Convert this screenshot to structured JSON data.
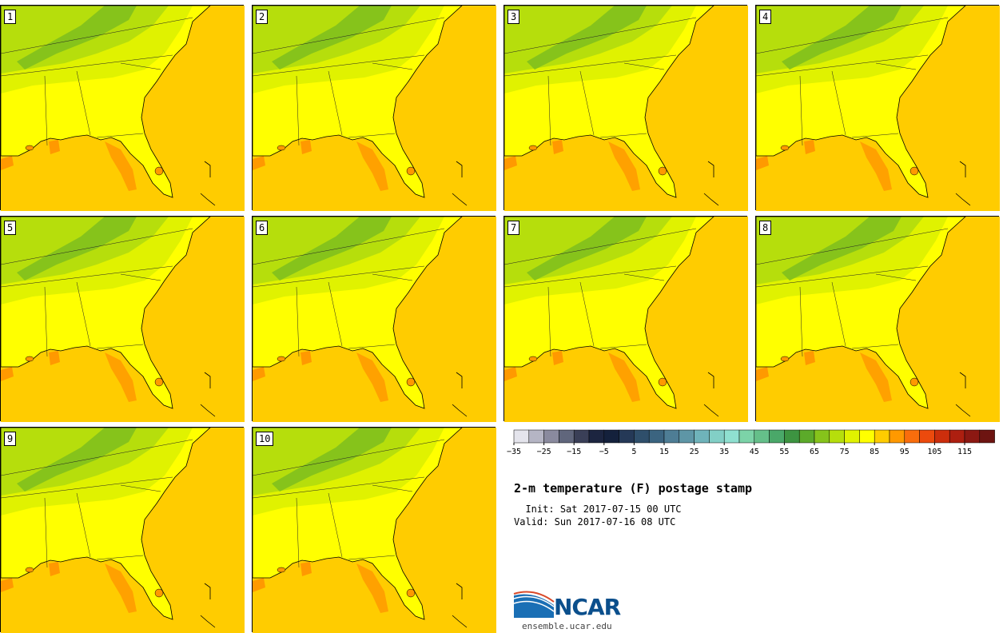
{
  "figure": {
    "title": "2-m temperature (F) postage stamp",
    "init_label": "Init:",
    "init_value": "Sat 2017-07-15 00 UTC",
    "valid_label": "Valid:",
    "valid_value": "Sun 2017-07-16 08 UTC"
  },
  "panels": [
    {
      "label": "1"
    },
    {
      "label": "2"
    },
    {
      "label": "3"
    },
    {
      "label": "4"
    },
    {
      "label": "5"
    },
    {
      "label": "6"
    },
    {
      "label": "7"
    },
    {
      "label": "8"
    },
    {
      "label": "9"
    },
    {
      "label": "10"
    }
  ],
  "colorbar": {
    "colors": [
      "#e4e4ec",
      "#b5b5c4",
      "#8a8a9e",
      "#60667c",
      "#3a3f57",
      "#1c2540",
      "#14213c",
      "#253957",
      "#2f4f6b",
      "#3b6480",
      "#4e7d95",
      "#5e96a6",
      "#6fb3ba",
      "#82cfc6",
      "#8fe0d0",
      "#7cd3a8",
      "#65bf8a",
      "#4aa869",
      "#3d9441",
      "#5caa2a",
      "#86c31b",
      "#b6de0c",
      "#e0f200",
      "#ffff00",
      "#ffcc00",
      "#ff9900",
      "#f96d0c",
      "#ec4a0d",
      "#cc2e0c",
      "#ad1f10",
      "#8c1812",
      "#6d1411"
    ],
    "tick_labels": [
      "−35",
      "−25",
      "−15",
      "−5",
      "5",
      "15",
      "25",
      "35",
      "45",
      "55",
      "65",
      "75",
      "85",
      "95",
      "105",
      "115"
    ]
  },
  "logo": {
    "name": "NCAR",
    "url": "ensemble.ucar.edu"
  },
  "colors": {
    "ocean": "#ffcc00",
    "land_warm": "#ffff00",
    "land_mid": "#e0f200",
    "land_cool": "#b6de0c",
    "mountain": "#86c31b",
    "hot_spot": "#ff9900"
  }
}
